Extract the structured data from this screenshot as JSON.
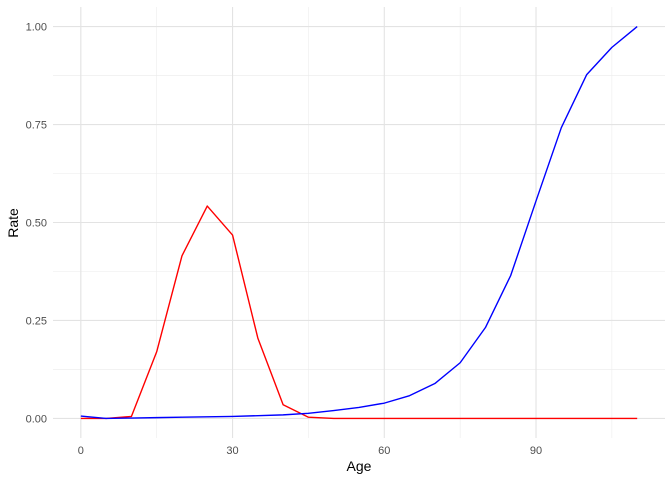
{
  "chart_data": {
    "type": "line",
    "title": "",
    "xlabel": "Age",
    "ylabel": "Rate",
    "xlim": [
      -5.5,
      115.5
    ],
    "ylim": [
      -0.05,
      1.05
    ],
    "x_ticks": [
      0,
      30,
      60,
      90
    ],
    "x_tick_labels": [
      "0",
      "30",
      "60",
      "90"
    ],
    "y_ticks": [
      0,
      0.25,
      0.5,
      0.75,
      1
    ],
    "y_tick_labels": [
      "0.00",
      "0.25",
      "0.50",
      "0.75",
      "1.00"
    ],
    "x_minor_ticks": [
      15,
      45,
      75,
      105
    ],
    "y_minor_ticks": [
      0.125,
      0.375,
      0.625,
      0.875
    ],
    "grid": true,
    "legend": "none",
    "x": [
      0,
      5,
      10,
      15,
      20,
      25,
      30,
      35,
      40,
      45,
      50,
      55,
      60,
      65,
      70,
      75,
      80,
      85,
      90,
      95,
      100,
      105,
      110
    ],
    "series": [
      {
        "color": "#ff0000",
        "values": [
          0.0,
          0.0,
          0.005,
          0.17,
          0.415,
          0.542,
          0.468,
          0.205,
          0.035,
          0.003,
          0.0,
          0.0,
          0.0,
          0.0,
          0.0,
          0.0,
          0.0,
          0.0,
          0.0,
          0.0,
          0.0,
          0.0,
          0.0
        ]
      },
      {
        "color": "#0000ff",
        "values": [
          0.006,
          0.0,
          0.001,
          0.002,
          0.003,
          0.004,
          0.005,
          0.007,
          0.009,
          0.013,
          0.02,
          0.028,
          0.039,
          0.058,
          0.089,
          0.142,
          0.232,
          0.365,
          0.555,
          0.742,
          0.877,
          0.947,
          1.0
        ]
      }
    ]
  }
}
